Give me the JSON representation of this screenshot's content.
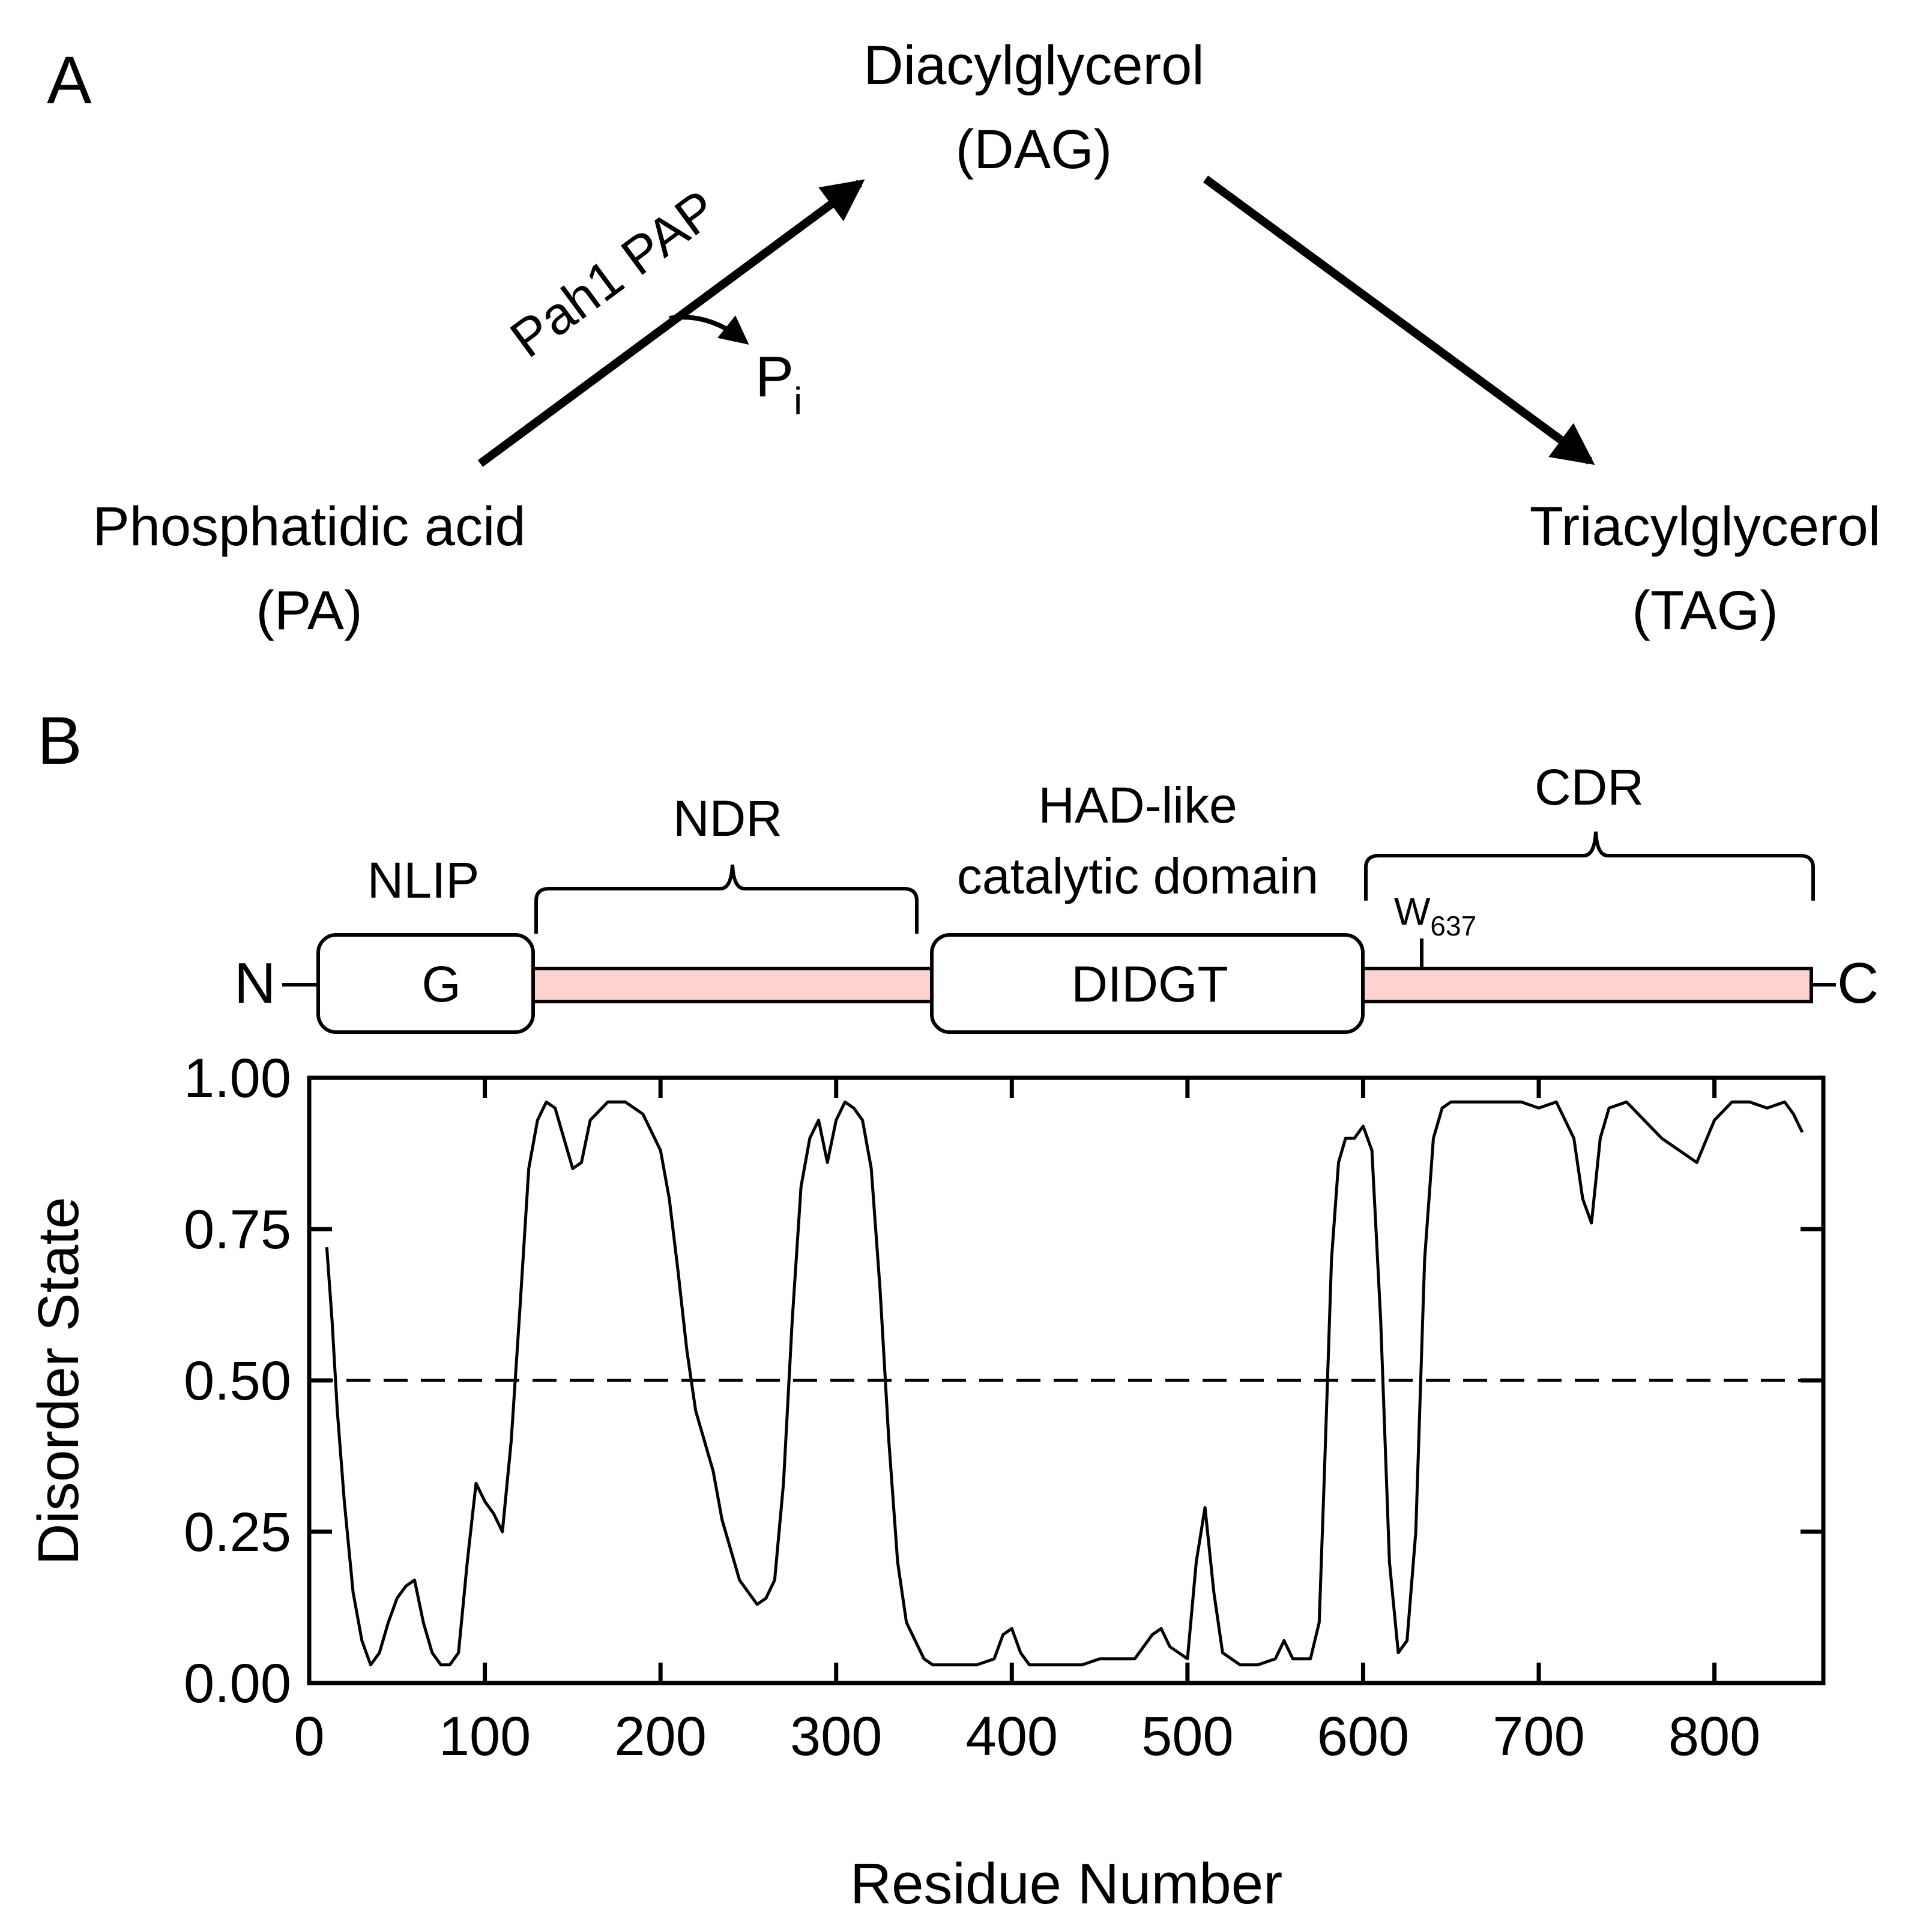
{
  "panel_a": {
    "label": "A",
    "dag_name": "Diacylglycerol",
    "dag_abbr": "(DAG)",
    "pa_name": "Phosphatidic acid",
    "pa_abbr": "(PA)",
    "tag_name": "Triacylglycerol",
    "tag_abbr": "(TAG)",
    "enzyme": "Pah1 PAP",
    "byproduct_main": "P",
    "byproduct_sub": "i"
  },
  "panel_b": {
    "label": "B",
    "n_terminus": "N",
    "c_terminus": "C",
    "domains": {
      "nlip_label": "NLIP",
      "nlip_motif": "G",
      "ndr_label": "NDR",
      "had_label_line1": "HAD-like",
      "had_label_line2": "catalytic domain",
      "had_motif": "DIDGT",
      "cdr_label": "CDR",
      "trp_main": "W",
      "trp_sub": "637"
    },
    "colors": {
      "disordered_region": "#ffd1d1",
      "ink": "#000000"
    }
  },
  "chart_data": {
    "type": "line",
    "xlabel": "Residue Number",
    "ylabel": "Disorder State",
    "xlim": [
      0,
      862
    ],
    "ylim": [
      0,
      1
    ],
    "xticks": [
      "0",
      "100",
      "200",
      "300",
      "400",
      "500",
      "600",
      "700",
      "800"
    ],
    "yticks": [
      "0.00",
      "0.25",
      "0.50",
      "0.75",
      "1.00"
    ],
    "threshold": 0.5,
    "series": [
      {
        "x": [
          10,
          13,
          16,
          20,
          25,
          30,
          35,
          40,
          45,
          50,
          55,
          60,
          65,
          70,
          75,
          80,
          85,
          90,
          95,
          100,
          105,
          110,
          115,
          120,
          125,
          130,
          135,
          140,
          145,
          150,
          155,
          160,
          170,
          180,
          190,
          200,
          205,
          210,
          215,
          220,
          225,
          230,
          235,
          240,
          245,
          250,
          255,
          260,
          265,
          270,
          275,
          280,
          285,
          290,
          295,
          300,
          305,
          310,
          315,
          320,
          325,
          330,
          335,
          340,
          345,
          350,
          355,
          360,
          370,
          380,
          390,
          395,
          400,
          405,
          410,
          420,
          430,
          440,
          450,
          460,
          470,
          475,
          480,
          485,
          490,
          500,
          505,
          510,
          515,
          520,
          530,
          540,
          550,
          555,
          560,
          570,
          575,
          578,
          582,
          586,
          590,
          595,
          600,
          605,
          610,
          615,
          620,
          625,
          630,
          635,
          640,
          645,
          650,
          660,
          670,
          680,
          690,
          700,
          710,
          720,
          725,
          730,
          735,
          740,
          750,
          760,
          770,
          780,
          790,
          800,
          810,
          820,
          830,
          840,
          845,
          850
        ],
        "y": [
          0.72,
          0.6,
          0.45,
          0.3,
          0.15,
          0.07,
          0.03,
          0.05,
          0.1,
          0.14,
          0.16,
          0.17,
          0.1,
          0.05,
          0.03,
          0.03,
          0.05,
          0.2,
          0.33,
          0.3,
          0.28,
          0.25,
          0.4,
          0.62,
          0.85,
          0.93,
          0.96,
          0.95,
          0.9,
          0.85,
          0.86,
          0.93,
          0.96,
          0.96,
          0.94,
          0.88,
          0.8,
          0.68,
          0.55,
          0.45,
          0.4,
          0.35,
          0.27,
          0.22,
          0.17,
          0.15,
          0.13,
          0.14,
          0.17,
          0.33,
          0.6,
          0.82,
          0.9,
          0.93,
          0.86,
          0.93,
          0.96,
          0.95,
          0.93,
          0.85,
          0.65,
          0.4,
          0.2,
          0.1,
          0.07,
          0.04,
          0.03,
          0.03,
          0.03,
          0.03,
          0.04,
          0.08,
          0.09,
          0.05,
          0.03,
          0.03,
          0.03,
          0.03,
          0.04,
          0.04,
          0.04,
          0.06,
          0.08,
          0.09,
          0.06,
          0.04,
          0.2,
          0.29,
          0.15,
          0.05,
          0.03,
          0.03,
          0.04,
          0.07,
          0.04,
          0.04,
          0.1,
          0.35,
          0.7,
          0.86,
          0.9,
          0.9,
          0.92,
          0.88,
          0.6,
          0.2,
          0.05,
          0.07,
          0.25,
          0.7,
          0.9,
          0.95,
          0.96,
          0.96,
          0.96,
          0.96,
          0.96,
          0.95,
          0.96,
          0.9,
          0.8,
          0.76,
          0.9,
          0.95,
          0.96,
          0.93,
          0.9,
          0.88,
          0.86,
          0.93,
          0.96,
          0.96,
          0.95,
          0.96,
          0.94,
          0.91
        ]
      }
    ]
  }
}
